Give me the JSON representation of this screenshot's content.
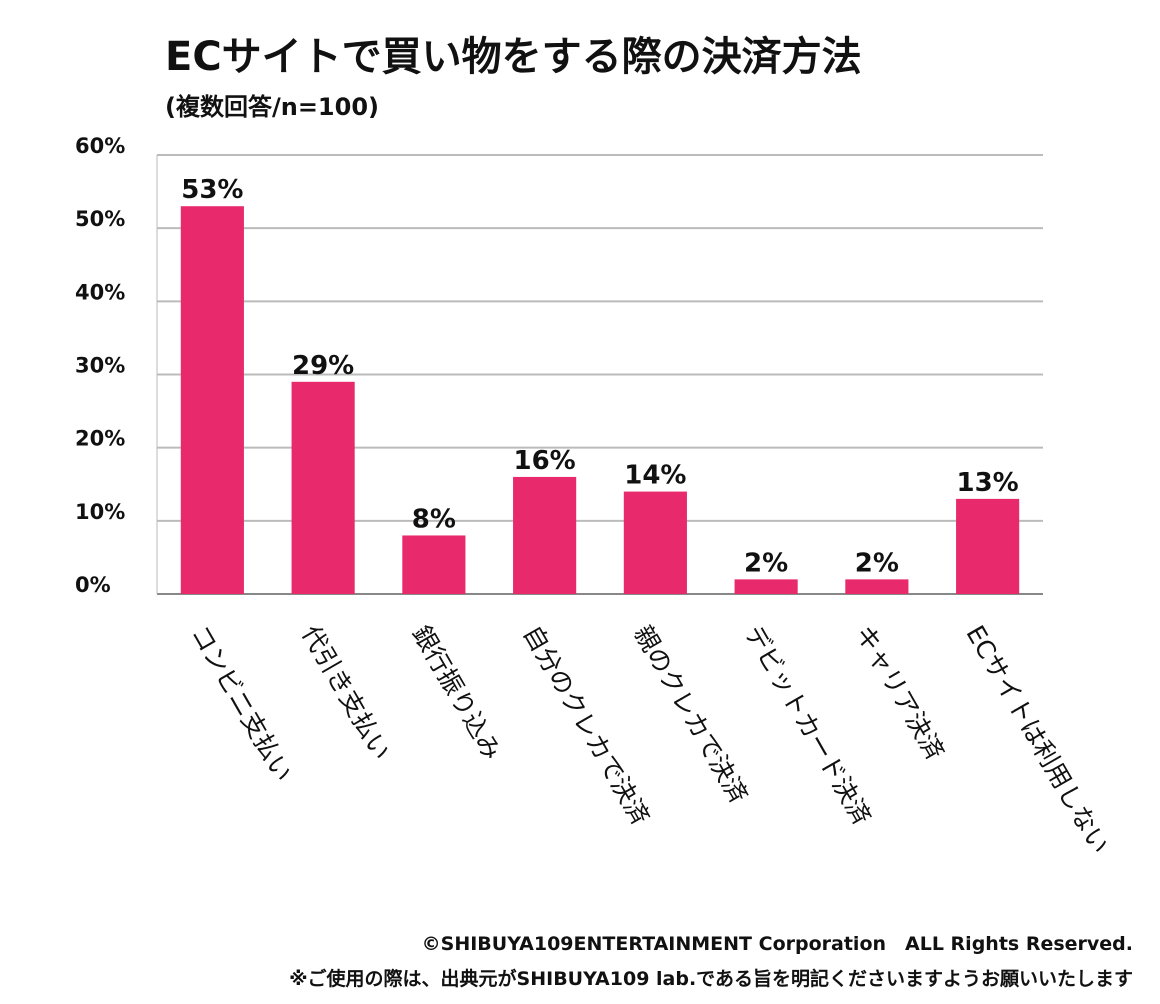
{
  "chart_data": {
    "type": "bar",
    "title": "ECサイトで買い物をする際の決済方法",
    "subtitle": "(複数回答/n=100)",
    "categories": [
      "コンビニ支払い",
      "代引き支払い",
      "銀行振り込み",
      "自分のクレカで決済",
      "親のクレカで決済",
      "デビットカード決済",
      "キャリア決済",
      "ECサイトは利用しない"
    ],
    "values": [
      53,
      29,
      8,
      16,
      14,
      2,
      2,
      13
    ],
    "value_labels": [
      "53%",
      "29%",
      "8%",
      "16%",
      "14%",
      "2%",
      "2%",
      "13%"
    ],
    "color": "#e8296b",
    "ylim": [
      0,
      60
    ],
    "yticks": [
      {
        "value": 0,
        "label": "0%"
      },
      {
        "value": 10,
        "label": "10%"
      },
      {
        "value": 20,
        "label": "20%"
      },
      {
        "value": 30,
        "label": "30%"
      },
      {
        "value": 40,
        "label": "40%"
      },
      {
        "value": 50,
        "label": "50%"
      },
      {
        "value": 60,
        "label": "60%"
      }
    ],
    "grid": true,
    "footer": [
      "©SHIBUYA109ENTERTAINMENT Corporation　ALL Rights Reserved.",
      "※ご使用の際は、出典元がSHIBUYA109 lab.である旨を明記くださいますようお願いいたします"
    ]
  }
}
